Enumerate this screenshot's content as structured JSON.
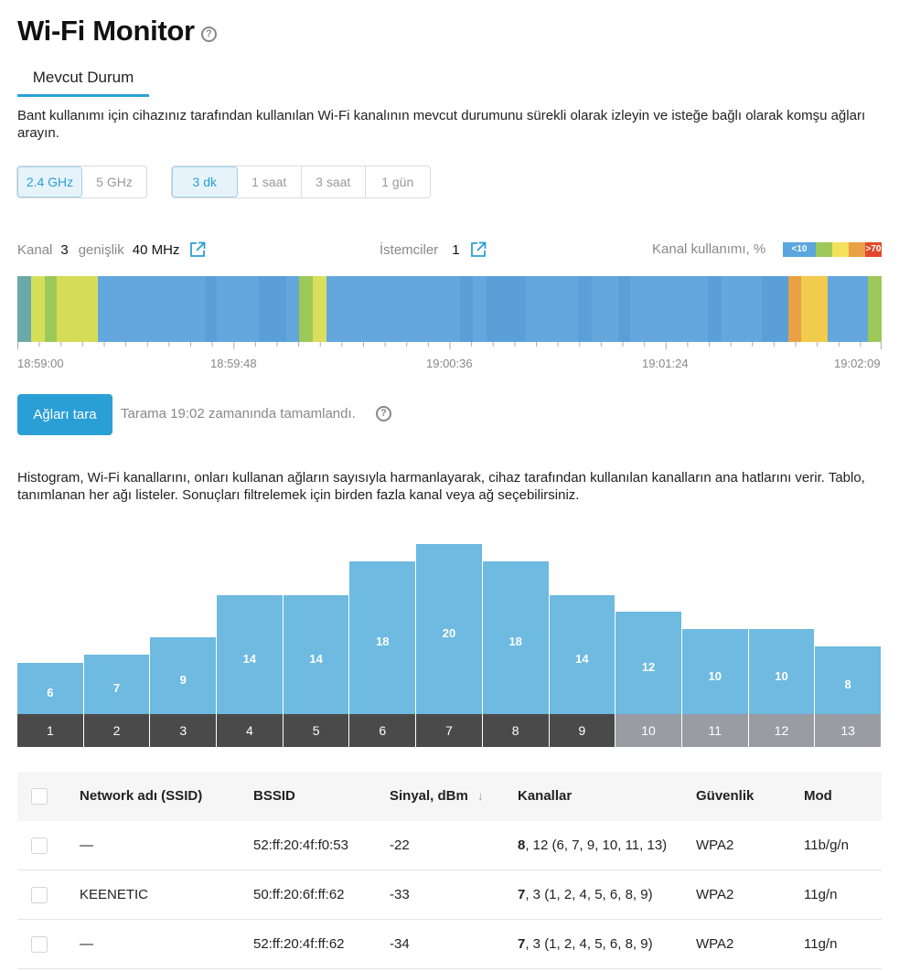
{
  "header": {
    "title": "Wi-Fi Monitor",
    "help_icon": "question-circle-icon",
    "tab_label": "Mevcut Durum"
  },
  "intro_text": "Bant kullanımı için cihazınız tarafından kullanılan Wi-Fi kanalının mevcut durumunu sürekli olarak izleyin ve isteğe bağlı olarak komşu ağları arayın.",
  "band_options": [
    {
      "label": "2.4 GHz",
      "active": true
    },
    {
      "label": "5 GHz",
      "active": false
    }
  ],
  "period_options": [
    {
      "label": "3 dk",
      "active": true
    },
    {
      "label": "1 saat",
      "active": false
    },
    {
      "label": "3 saat",
      "active": false
    },
    {
      "label": "1 gün",
      "active": false
    }
  ],
  "info": {
    "channel_label": "Kanal",
    "channel_value": "3",
    "width_label": "genişlik",
    "width_value": "40 MHz",
    "clients_label": "İstemciler",
    "clients_value": "1",
    "usage_label": "Kanal kullanımı, %",
    "link_icon": "external-link-icon"
  },
  "usage_legend": [
    {
      "label": "<10",
      "color": "#5aa6dd"
    },
    {
      "label": "",
      "color": "#9dc85a"
    },
    {
      "label": "",
      "color": "#f1e15b"
    },
    {
      "label": "",
      "color": "#eaa044"
    },
    {
      "label": ">70",
      "color": "#e0482c"
    }
  ],
  "colors": {
    "accent": "#2a9fd6",
    "histogram_bar": "#6ebae0",
    "channel_dark": "#4a4a4a",
    "channel_light": "#999da3"
  },
  "timeline_segments": [
    {
      "w": 1.6,
      "c": "#6aa9a8"
    },
    {
      "w": 1.6,
      "c": "#d5e05a"
    },
    {
      "w": 1.4,
      "c": "#9dc85a"
    },
    {
      "w": 4.8,
      "c": "#d5dd58"
    },
    {
      "w": 12.5,
      "c": "#64a7dc"
    },
    {
      "w": 1.4,
      "c": "#5a9fd8"
    },
    {
      "w": 4.9,
      "c": "#64a7dc"
    },
    {
      "w": 3.2,
      "c": "#5a9fd8"
    },
    {
      "w": 1.5,
      "c": "#64a7dc"
    },
    {
      "w": 1.6,
      "c": "#9dc85a"
    },
    {
      "w": 1.6,
      "c": "#d9de5c"
    },
    {
      "w": 1.4,
      "c": "#64a7dc"
    },
    {
      "w": 14.1,
      "c": "#64a7dc"
    },
    {
      "w": 1.5,
      "c": "#5a9fd8"
    },
    {
      "w": 1.6,
      "c": "#64a7dc"
    },
    {
      "w": 4.6,
      "c": "#5a9fd8"
    },
    {
      "w": 6.1,
      "c": "#64a7dc"
    },
    {
      "w": 1.6,
      "c": "#5a9fd8"
    },
    {
      "w": 3.1,
      "c": "#64a7dc"
    },
    {
      "w": 1.4,
      "c": "#5a9fd8"
    },
    {
      "w": 1.4,
      "c": "#64a7dc"
    },
    {
      "w": 7.7,
      "c": "#64a7dc"
    },
    {
      "w": 1.5,
      "c": "#5a9fd8"
    },
    {
      "w": 4.7,
      "c": "#64a7dc"
    },
    {
      "w": 3.1,
      "c": "#5a9fd8"
    },
    {
      "w": 1.5,
      "c": "#eaa044"
    },
    {
      "w": 3.1,
      "c": "#f0cb4c"
    },
    {
      "w": 4.7,
      "c": "#64a7dc"
    },
    {
      "w": 1.6,
      "c": "#9dc85a"
    }
  ],
  "timeline_labels": [
    "18:59:00",
    "18:59:48",
    "19:00:36",
    "19:01:24",
    "19:02:09"
  ],
  "scan": {
    "button_label": "Ağları tara",
    "status": "Tarama 19:02 zamanında tamamlandı."
  },
  "histogram_text": "Histogram, Wi-Fi kanallarını, onları kullanan ağların sayısıyla harmanlayarak, cihaz tarafından kullanılan kanalların ana hatlarını verir. Tablo, tanımlanan her ağı listeler. Sonuçları filtrelemek için birden fazla kanal veya ağ seçebilirsiniz.",
  "chart_data": {
    "type": "bar",
    "categories": [
      "1",
      "2",
      "3",
      "4",
      "5",
      "6",
      "7",
      "8",
      "9",
      "10",
      "11",
      "12",
      "13"
    ],
    "values": [
      6,
      7,
      9,
      14,
      14,
      18,
      20,
      18,
      14,
      12,
      10,
      10,
      8
    ],
    "available": [
      true,
      true,
      true,
      true,
      true,
      true,
      true,
      true,
      true,
      false,
      false,
      false,
      false
    ]
  },
  "table": {
    "headers": {
      "ssid": "Network adı (SSID)",
      "bssid": "BSSID",
      "signal": "Sinyal, dBm",
      "channels": "Kanallar",
      "security": "Güvenlik",
      "mode": "Mod"
    },
    "sort_icon": "arrow-down-icon",
    "rows": [
      {
        "ssid": "—",
        "bssid": "52:ff:20:4f:f0:53",
        "signal": "-22",
        "primary": "8",
        "channels": ", 12 (6, 7, 9, 10, 11, 13)",
        "security": "WPA2",
        "mode": "11b/g/n"
      },
      {
        "ssid": "KEENETIC",
        "bssid": "50:ff:20:6f:ff:62",
        "signal": "-33",
        "primary": "7",
        "channels": ", 3 (1, 2, 4, 5, 6, 8, 9)",
        "security": "WPA2",
        "mode": "11g/n"
      },
      {
        "ssid": "—",
        "bssid": "52:ff:20:4f:ff:62",
        "signal": "-34",
        "primary": "7",
        "channels": ", 3 (1, 2, 4, 5, 6, 8, 9)",
        "security": "WPA2",
        "mode": "11g/n"
      }
    ]
  }
}
